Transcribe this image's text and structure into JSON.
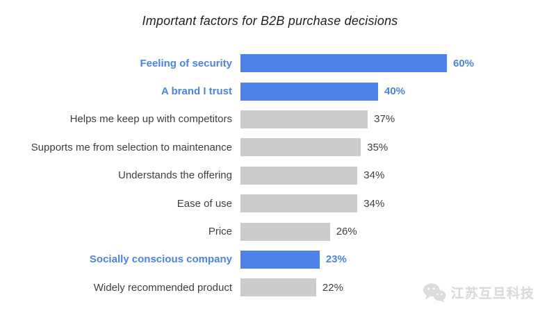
{
  "title": "Important factors for B2B purchase decisions",
  "colors": {
    "highlight_blue": "#4d82e8",
    "bar_gray": "#cccccc",
    "text_dark": "#3c4043",
    "title_dark": "#202124",
    "watermark_gray": "#d9d9d9"
  },
  "chart_data": {
    "type": "bar",
    "orientation": "horizontal",
    "title": "Important factors for B2B purchase decisions",
    "categories": [
      "Feeling of security",
      "A brand I trust",
      "Helps me keep up with competitors",
      "Supports me from selection to maintenance",
      "Understands the offering",
      "Ease of use",
      "Price",
      "Socially conscious company",
      "Widely recommended product"
    ],
    "values": [
      60,
      40,
      37,
      35,
      34,
      34,
      26,
      23,
      22
    ],
    "value_labels": [
      "60%",
      "40%",
      "37%",
      "35%",
      "34%",
      "34%",
      "26%",
      "23%",
      "22%"
    ],
    "value_suffix": "%",
    "highlighted": [
      true,
      true,
      false,
      false,
      false,
      false,
      false,
      true,
      false
    ],
    "xlim": [
      0,
      100
    ],
    "grid": false,
    "legend": false,
    "axis_visible": false
  },
  "watermark": {
    "icon": "wechat-icon",
    "text": "江苏互旦科技"
  }
}
